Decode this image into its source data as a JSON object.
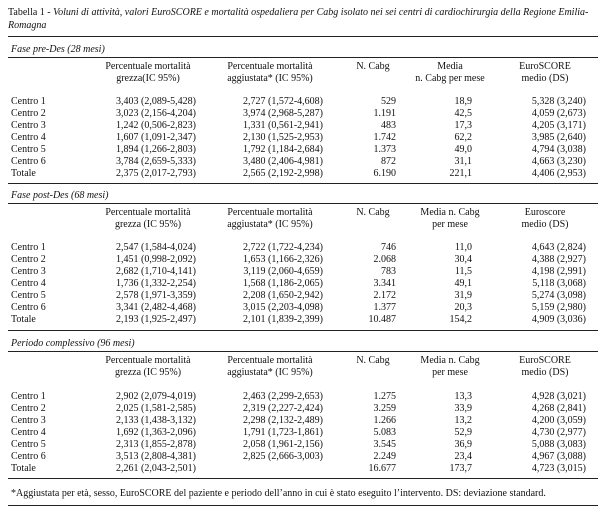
{
  "caption": {
    "lead": "Tabella 1 - ",
    "text": "Voluni di attività, valori EuroSCORE e mortalità ospedaliera per Cabg isolato nei sei centri di cardiochirurgia della Regione Emilia-Romagna"
  },
  "sections": [
    {
      "title": "Fase pre-Des (28 mesi)",
      "headers": {
        "grezza": [
          "Percentuale mortalità",
          "grezza(IC 95%)"
        ],
        "agg": [
          "Percentuale mortalità",
          "aggiustata* (IC 95%)"
        ],
        "n": [
          "N. Cabg"
        ],
        "media": [
          "Media",
          "n. Cabg per mese"
        ],
        "euro": [
          "EuroSCORE",
          "medio (DS)"
        ]
      },
      "rows": [
        {
          "name": "Centro 1",
          "grezza": "3,403 (2,089-5,428)",
          "agg": "2,727 (1,572-4,608)",
          "n": "529",
          "media": "18,9",
          "euro": "5,328 (3,240)"
        },
        {
          "name": "Centro 2",
          "grezza": "3,023 (2,156-4,204)",
          "agg": "3,974 (2,968-5,287)",
          "n": "1.191",
          "media": "42,5",
          "euro": "4,059 (2,673)"
        },
        {
          "name": "Centro 3",
          "grezza": "1,242 (0,506-2,823)",
          "agg": "1,331 (0,561-2,941)",
          "n": "483",
          "media": "17,3",
          "euro": "4,205 (3,171)"
        },
        {
          "name": "Centro 4",
          "grezza": "1,607 (1,091-2,347)",
          "agg": "2,130 (1,525-2,953)",
          "n": "1.742",
          "media": "62,2",
          "euro": "3,985 (2,640)"
        },
        {
          "name": "Centro 5",
          "grezza": "1,894 (1,266-2,803)",
          "agg": "1,792 (1,184-2,684)",
          "n": "1.373",
          "media": "49,0",
          "euro": "4,794 (3,038)"
        },
        {
          "name": "Centro 6",
          "grezza": "3,784 (2,659-5,333)",
          "agg": "3,480 (2,406-4,981)",
          "n": "872",
          "media": "31,1",
          "euro": "4,663 (3,230)"
        },
        {
          "name": "Totale",
          "grezza": "2,375 (2,017-2,793)",
          "agg": "2,565 (2,192-2,998)",
          "n": "6.190",
          "media": "221,1",
          "euro": "4,406 (2,953)"
        }
      ]
    },
    {
      "title": "Fase post-Des (68 mesi)",
      "headers": {
        "grezza": [
          "Percentuale mortalità",
          "grezza (IC 95%)"
        ],
        "agg": [
          "Percentuale mortalità",
          "aggiustata* (IC 95%)"
        ],
        "n": [
          "N. Cabg"
        ],
        "media": [
          "Media n. Cabg",
          "per mese"
        ],
        "euro": [
          "Euroscore",
          "medio (DS)"
        ]
      },
      "rows": [
        {
          "name": "Centro 1",
          "grezza": "2,547 (1,584-4,024)",
          "agg": "2,722 (1,722-4,234)",
          "n": "746",
          "media": "11,0",
          "euro": "4,643 (2,824)"
        },
        {
          "name": "Centro 2",
          "grezza": "1,451 (0,998-2,092)",
          "agg": "1,653 (1,166-2,326)",
          "n": "2.068",
          "media": "30,4",
          "euro": "4,388 (2,927)"
        },
        {
          "name": "Centro 3",
          "grezza": "2,682 (1,710-4,141)",
          "agg": "3,119 (2,060-4,659)",
          "n": "783",
          "media": "11,5",
          "euro": "4,198 (2,991)"
        },
        {
          "name": "Centro 4",
          "grezza": "1,736 (1,332-2,254)",
          "agg": "1,568 (1,186-2,065)",
          "n": "3.341",
          "media": "49,1",
          "euro": "5,118 (3,068)"
        },
        {
          "name": "Centro 5",
          "grezza": "2,578 (1,971-3,359)",
          "agg": "2,208 (1,650-2,942)",
          "n": "2.172",
          "media": "31,9",
          "euro": "5,274 (3,098)"
        },
        {
          "name": "Centro 6",
          "grezza": "3,341 (2,482-4,468)",
          "agg": "3,015 (2,203-4,098)",
          "n": "1.377",
          "media": "20,3",
          "euro": "5,159 (2,980)"
        },
        {
          "name": "Totale",
          "grezza": "2,193 (1,925-2,497)",
          "agg": "2,101 (1,839-2,399)",
          "n": "10.487",
          "media": "154,2",
          "euro": "4,909 (3,036)"
        }
      ]
    },
    {
      "title": "Periodo complessivo (96 mesi)",
      "headers": {
        "grezza": [
          "Percentuale mortalità",
          "grezza (IC 95%)"
        ],
        "agg": [
          "Percentuale mortalità",
          "aggiustata* (IC 95%)"
        ],
        "n": [
          "N. Cabg"
        ],
        "media": [
          "Media n. Cabg",
          "per mese"
        ],
        "euro": [
          "EuroSCORE",
          "medio (DS)"
        ]
      },
      "rows": [
        {
          "name": "Centro 1",
          "grezza": "2,902 (2,079-4,019)",
          "agg": "2,463 (2,299-2,653)",
          "n": "1.275",
          "media": "13,3",
          "euro": "4,928 (3,021)"
        },
        {
          "name": "Centro 2",
          "grezza": "2,025 (1,581-2,585)",
          "agg": "2,319 (2,227-2,424)",
          "n": "3.259",
          "media": "33,9",
          "euro": "4,268 (2,841)"
        },
        {
          "name": "Centro 3",
          "grezza": "2,133 (1,438-3,132)",
          "agg": "2,298 (2,132-2,489)",
          "n": "1.266",
          "media": "13,2",
          "euro": "4,200 (3,059)"
        },
        {
          "name": "Centro 4",
          "grezza": "1,692 (1,363-2,096)",
          "agg": "1,791 (1,723-1,861)",
          "n": "5.083",
          "media": "52,9",
          "euro": "4,730 (2,977)"
        },
        {
          "name": "Centro 5",
          "grezza": "2,313 (1,855-2,878)",
          "agg": "2,058 (1,961-2,156)",
          "n": "3.545",
          "media": "36,9",
          "euro": "5,088 (3,083)"
        },
        {
          "name": "Centro 6",
          "grezza": "3,513 (2,808-4,381)",
          "agg": "2,825 (2,666-3,003)",
          "n": "2.249",
          "media": "23,4",
          "euro": "4,967 (3,088)"
        },
        {
          "name": "Totale",
          "grezza": "2,261 (2,043-2,501)",
          "agg": "",
          "n": "16.677",
          "media": "173,7",
          "euro": "4,723 (3,015)"
        }
      ]
    }
  ],
  "footnote": "*Aggiustata per età, sesso, EuroSCORE del paziente e periodo dell’anno in cui è stato eseguito l’intervento. DS: deviazione standard."
}
